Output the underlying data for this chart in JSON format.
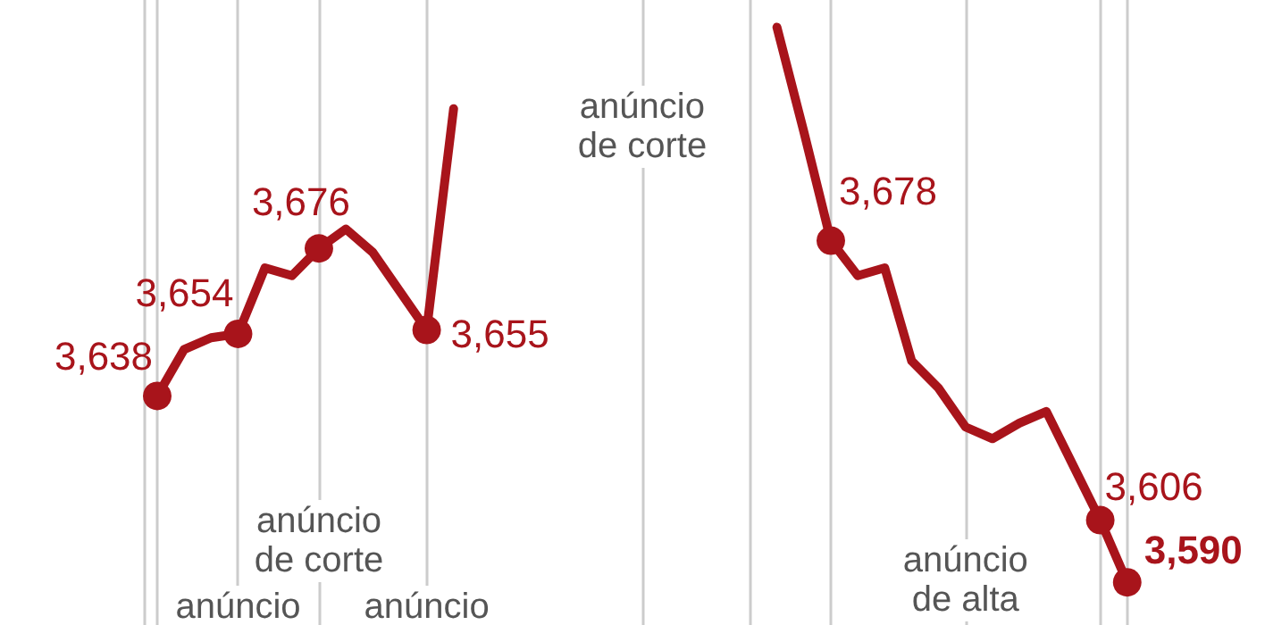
{
  "chart_data": [
    {
      "type": "line",
      "categories": [
        null,
        null,
        null,
        null,
        null,
        null,
        null,
        null,
        null,
        null,
        null,
        null
      ],
      "ylim": [
        3579,
        3740
      ],
      "tick_labels": false,
      "grid": "x",
      "line_style": "solid",
      "series": [
        {
          "color": "#a8141b",
          "values": [
            3638,
            3650,
            3653,
            3654,
            3671,
            3669,
            3676,
            3681,
            3675,
            3665,
            3655,
            3712
          ],
          "value_labels": [
            "3,638",
            null,
            null,
            "3,654",
            null,
            null,
            "3,676",
            null,
            null,
            null,
            "3,655",
            null
          ]
        }
      ],
      "annotations": [
        "anúncio",
        "anúncio de corte",
        "anúncio"
      ]
    },
    {
      "type": "line",
      "categories": [
        null,
        null,
        null,
        null,
        null,
        null,
        null,
        null,
        null,
        null,
        null,
        null,
        null,
        null
      ],
      "ylim": [
        3579,
        3740
      ],
      "tick_labels": false,
      "grid": "x",
      "line_style": "solid",
      "series": [
        {
          "color": "#a8141b",
          "values": [
            3733,
            3706,
            3678,
            3669,
            3671,
            3647,
            3640,
            3630,
            3627,
            3631,
            3634,
            3620,
            3606,
            3590
          ],
          "value_labels": [
            null,
            null,
            "3,678",
            null,
            null,
            null,
            null,
            null,
            null,
            null,
            null,
            null,
            "3,606",
            "3,590"
          ]
        }
      ],
      "annotations": [
        "anúncio de corte",
        "anúncio de alta"
      ]
    }
  ]
}
